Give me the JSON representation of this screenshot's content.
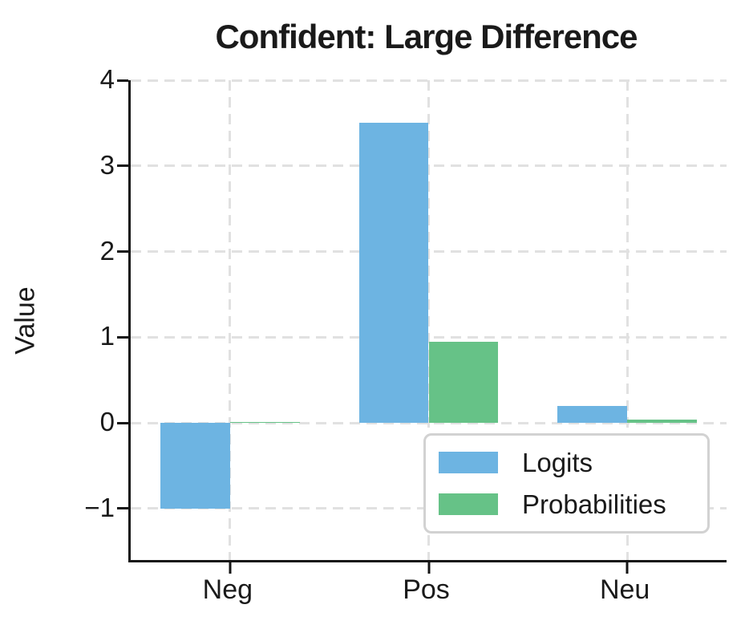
{
  "chart_data": {
    "type": "bar",
    "title": "Confident: Large Difference",
    "xlabel": "",
    "ylabel": "Value",
    "categories": [
      "Neg",
      "Pos",
      "Neu"
    ],
    "series": [
      {
        "name": "Logits",
        "color": "#6db4e2",
        "values": [
          -1.0,
          3.5,
          0.2
        ]
      },
      {
        "name": "Probabilities",
        "color": "#66c287",
        "values": [
          0.01,
          0.95,
          0.04
        ]
      }
    ],
    "bar_width": 0.35,
    "group_offset": 0.175,
    "xlim": [
      -0.5,
      2.5
    ],
    "ylim": [
      -1.6,
      4.0
    ],
    "yticks": [
      {
        "v": -1,
        "label": "−1"
      },
      {
        "v": 0,
        "label": "0"
      },
      {
        "v": 1,
        "label": "1"
      },
      {
        "v": 2,
        "label": "2"
      },
      {
        "v": 3,
        "label": "3"
      },
      {
        "v": 4,
        "label": "4"
      }
    ],
    "grid": true,
    "legend_position": "lower right",
    "colors": {
      "spine": "#151515",
      "grid": "#e1e1e1",
      "text": "#1a1a1a",
      "legend_border": "#d2d2d2"
    }
  }
}
